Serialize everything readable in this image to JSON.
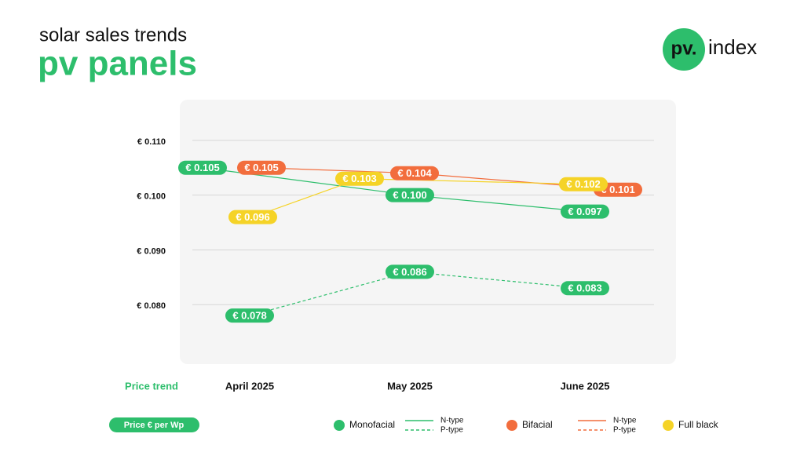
{
  "brand": {
    "mark": "pv.",
    "name": "index"
  },
  "chart_data": {
    "type": "line",
    "subtitle": "solar sales trends",
    "title": "pv panels",
    "x_axis_label": "Price trend",
    "y_axis_label": "Price € per Wp",
    "categories": [
      "April 2025",
      "May 2025",
      "June 2025"
    ],
    "legend": [
      {
        "label": "Monofacial",
        "color": "#2dbe6c",
        "line_styles": [
          "N-type",
          "P-type"
        ]
      },
      {
        "label": "Bifacial",
        "color": "#f26d3d",
        "line_styles": [
          "N-type",
          "P-type"
        ]
      },
      {
        "label": "Full black",
        "color": "#f5d327"
      }
    ],
    "series": [
      {
        "legend": 0,
        "line_style": 0,
        "values": [
          0.105,
          0.1,
          0.097
        ],
        "value_labels": [
          "€ 0.105",
          "€ 0.100",
          "€ 0.097"
        ]
      },
      {
        "legend": 0,
        "line_style": 1,
        "values": [
          0.078,
          0.086,
          0.083
        ],
        "value_labels": [
          "€ 0.078",
          "€ 0.086",
          "€ 0.083"
        ]
      },
      {
        "legend": 1,
        "line_style": 0,
        "values": [
          0.105,
          0.104,
          0.101
        ],
        "value_labels": [
          "€ 0.105",
          "€ 0.104",
          "€ 0.101"
        ]
      },
      {
        "legend": 2,
        "values": [
          0.096,
          0.103,
          0.102
        ],
        "value_labels": [
          "€ 0.096",
          "€ 0.103",
          "€ 0.102"
        ]
      }
    ],
    "ylim": [
      0.07,
      0.115
    ],
    "yticks": [
      {
        "value": 0.08,
        "label": "€ 0.080"
      },
      {
        "value": 0.09,
        "label": "€ 0.090"
      },
      {
        "value": 0.1,
        "label": "€ 0.100"
      },
      {
        "value": 0.11,
        "label": "€ 0.110"
      }
    ],
    "grid": true
  }
}
